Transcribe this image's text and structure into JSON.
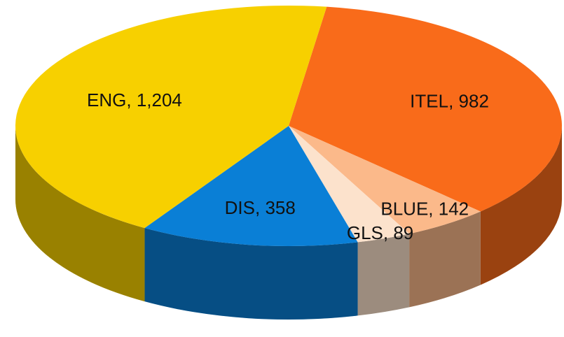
{
  "chart_data": {
    "type": "pie",
    "pie_style": "3d",
    "categories": [
      "ITEL",
      "BLUE",
      "GLS",
      "DIS",
      "ENG"
    ],
    "values": [
      982,
      142,
      89,
      358,
      1204
    ],
    "value_labels": [
      "982",
      "142",
      "89",
      "358",
      "1,204"
    ],
    "label_separator": ", ",
    "colors": [
      "#f96b1a",
      "#fbb98a",
      "#fce2cc",
      "#0a7fd6",
      "#f7d000"
    ]
  }
}
